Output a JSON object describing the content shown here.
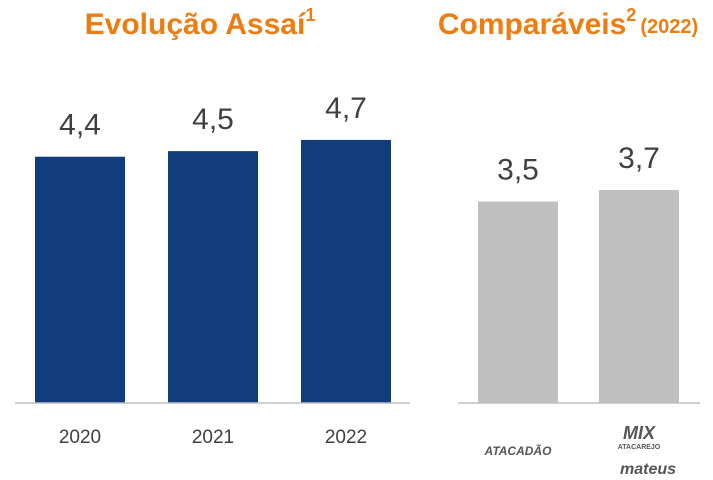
{
  "chart_data": [
    {
      "type": "bar",
      "title": "Evolução Assaí",
      "title_note": "1",
      "categories": [
        "2020",
        "2021",
        "2022"
      ],
      "values": [
        4.4,
        4.5,
        4.7
      ],
      "value_labels": [
        "4,4",
        "4,5",
        "4,7"
      ],
      "color": "#123d7c",
      "ylim": [
        0,
        7.2
      ]
    },
    {
      "type": "bar",
      "title": "Comparáveis",
      "title_note": "2",
      "subtitle": "(2022)",
      "categories": [
        "ATACADÃO",
        "MIX"
      ],
      "category_subtexts": [
        null,
        "ATACAREJO"
      ],
      "brand": "mateus",
      "values": [
        3.5,
        3.7
      ],
      "value_labels": [
        "3,5",
        "3,7"
      ],
      "color": "#c0c0c0",
      "ylim": [
        0,
        7.0
      ]
    }
  ]
}
